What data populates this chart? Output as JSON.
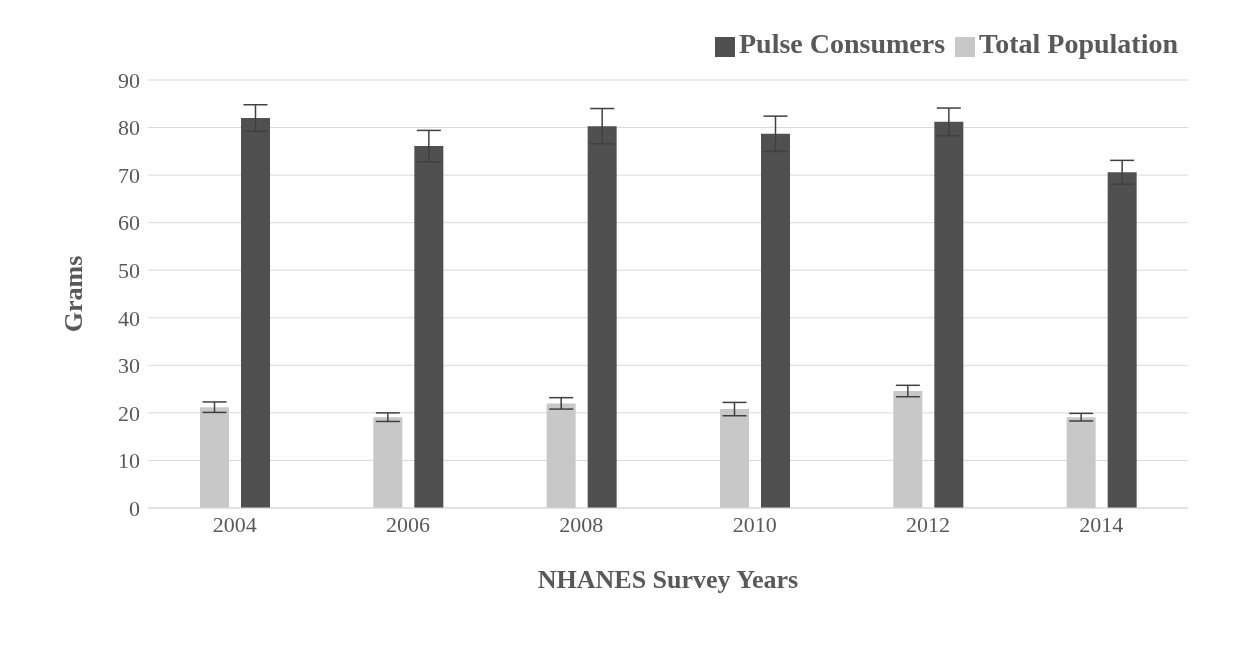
{
  "chart_data": {
    "type": "bar",
    "categories": [
      "2004",
      "2006",
      "2008",
      "2010",
      "2012",
      "2014"
    ],
    "series": [
      {
        "name": "Total Population",
        "color": "#c8c8c8",
        "values": [
          21.2,
          19.1,
          22.0,
          20.8,
          24.6,
          19.1
        ],
        "errors": [
          1.1,
          0.9,
          1.2,
          1.4,
          1.2,
          0.8
        ]
      },
      {
        "name": "Pulse Consumers",
        "color": "#505050",
        "values": [
          82.0,
          76.1,
          80.3,
          78.7,
          81.2,
          70.6
        ],
        "errors": [
          2.8,
          3.3,
          3.7,
          3.7,
          2.9,
          2.5
        ]
      }
    ],
    "xlabel": "NHANES Survey Years",
    "ylabel": "Grams",
    "ylim": [
      0,
      90
    ],
    "yticks": [
      0,
      10,
      20,
      30,
      40,
      50,
      60,
      70,
      80,
      90
    ],
    "grid": "y",
    "legend": "top right"
  }
}
